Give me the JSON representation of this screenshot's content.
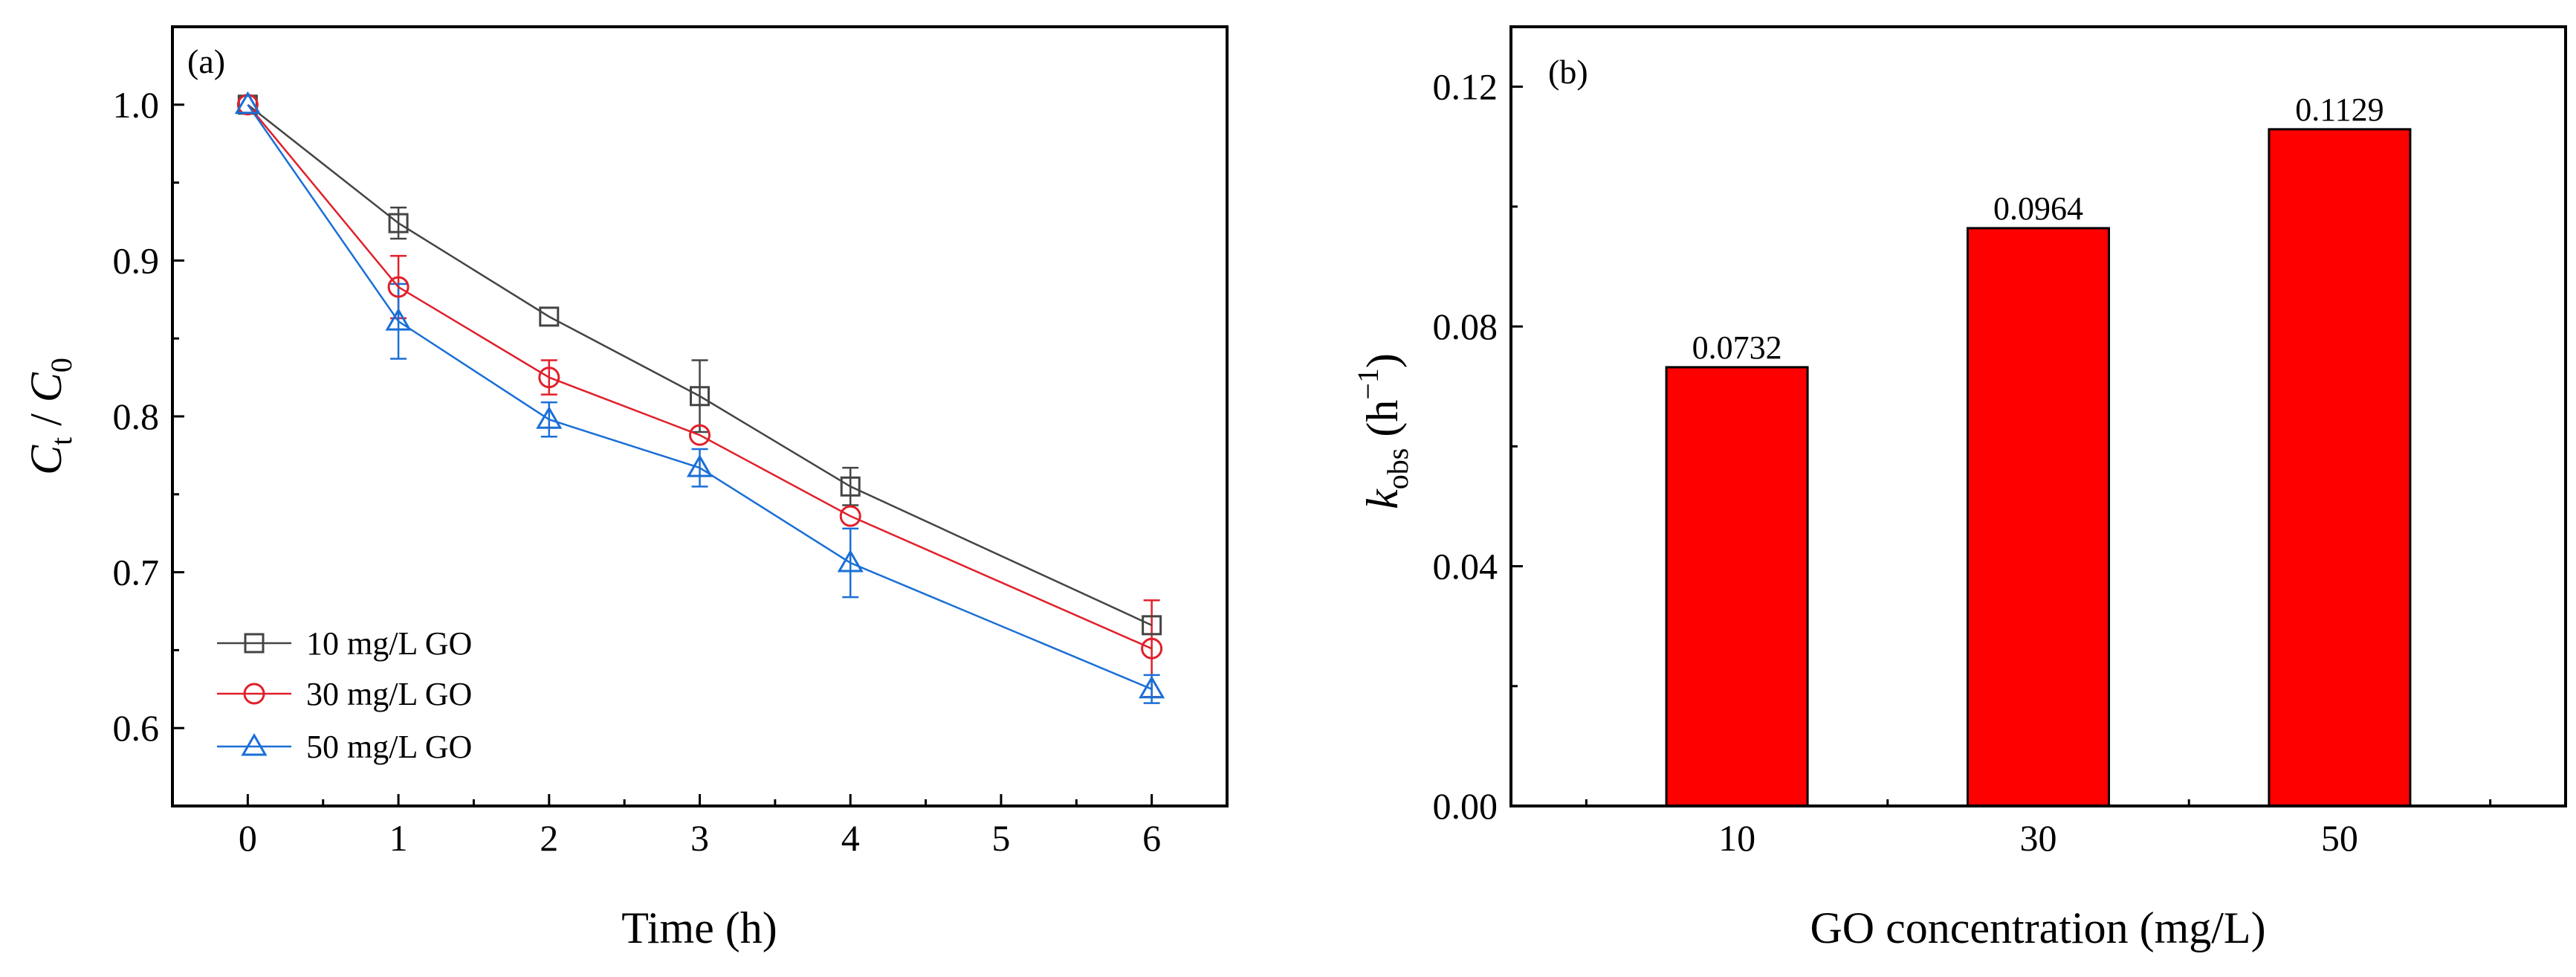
{
  "chart_data": [
    {
      "type": "line",
      "panel_label": "(a)",
      "xlabel": "Time (h)",
      "ylabel": {
        "c": "C",
        "t": "t",
        "slash": " / ",
        "c0": "C",
        "zero": "0"
      },
      "xlim": [
        -0.5,
        6.5
      ],
      "ylim": [
        0.55,
        1.05
      ],
      "xticks": [
        "0",
        "1",
        "2",
        "3",
        "4",
        "5",
        "6"
      ],
      "yticks": [
        "0.6",
        "0.7",
        "0.8",
        "0.9",
        "1.0"
      ],
      "legend_position": "bottom-left",
      "x": [
        0,
        1,
        2,
        3,
        4,
        6
      ],
      "series": [
        {
          "name": "10 mg/L GO",
          "marker": "square",
          "color": "#444444",
          "values": [
            1.0,
            0.924,
            0.864,
            0.813,
            0.755,
            0.666
          ],
          "errors": [
            0.0,
            0.01,
            0.0,
            0.023,
            0.012,
            0.0
          ]
        },
        {
          "name": "30 mg/L GO",
          "marker": "circle",
          "color": "#e0202a",
          "values": [
            1.0,
            0.883,
            0.825,
            0.788,
            0.736,
            0.651
          ],
          "errors": [
            0.0,
            0.02,
            0.011,
            0.0,
            0.0,
            0.031
          ]
        },
        {
          "name": "50 mg/L GO",
          "marker": "triangle",
          "color": "#1a6fd6",
          "values": [
            1.0,
            0.861,
            0.798,
            0.767,
            0.706,
            0.625
          ],
          "errors": [
            0.0,
            0.024,
            0.011,
            0.012,
            0.022,
            0.009
          ]
        }
      ]
    },
    {
      "type": "bar",
      "panel_label": "(b)",
      "xlabel": "GO concentration (mg/L)",
      "ylabel": {
        "k": "k",
        "sub": "obs",
        "unit_open": " (h",
        "sup": "−1",
        "unit_close": ")"
      },
      "categories": [
        "10",
        "30",
        "50"
      ],
      "values": [
        0.0732,
        0.0964,
        0.1129
      ],
      "data_labels": [
        "0.0732",
        "0.0964",
        "0.1129"
      ],
      "ylim": [
        0.0,
        0.13
      ],
      "yticks": [
        "0.00",
        "0.04",
        "0.08",
        "0.12"
      ],
      "bar_color": "#ff0000"
    }
  ]
}
